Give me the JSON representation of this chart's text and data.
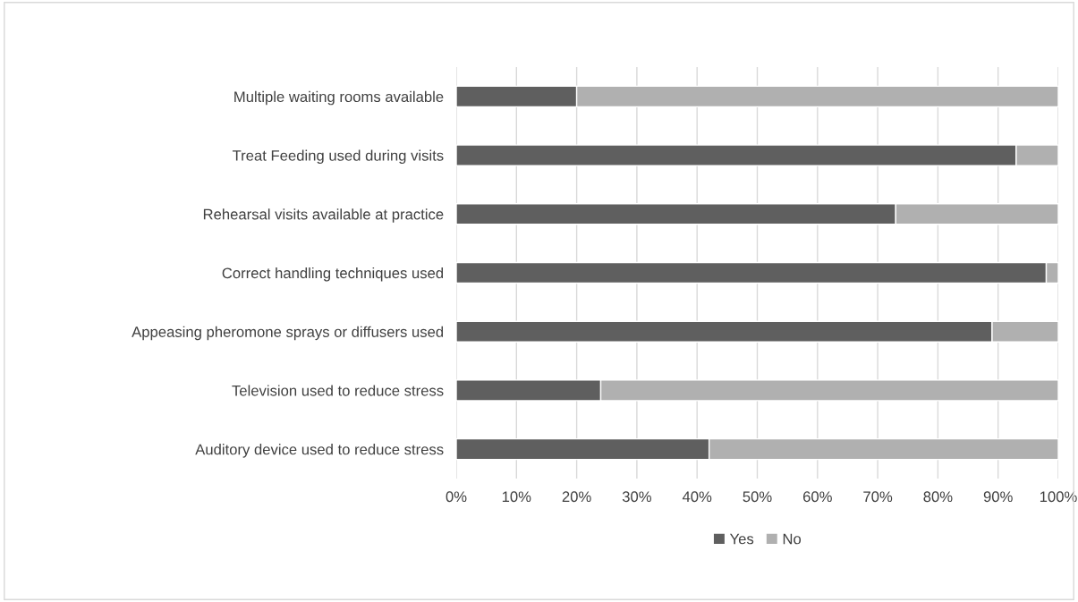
{
  "chart_data": {
    "type": "bar",
    "orientation": "horizontal",
    "stacked": true,
    "categories": [
      "Multiple waiting rooms available",
      "Treat Feeding used during visits",
      "Rehearsal visits available at practice",
      "Correct handling techniques used",
      "Appeasing pheromone sprays or diffusers used",
      "Television used to reduce stress",
      "Auditory device used to reduce stress"
    ],
    "series": [
      {
        "name": "Yes",
        "color": "#5f5f5f",
        "values": [
          20,
          93,
          73,
          98,
          89,
          24,
          42
        ]
      },
      {
        "name": "No",
        "color": "#b0b0b0",
        "values": [
          80,
          7,
          27,
          2,
          11,
          76,
          58
        ]
      }
    ],
    "xlim": [
      0,
      100
    ],
    "xticks": [
      {
        "value": 0,
        "label": "0%"
      },
      {
        "value": 10,
        "label": "10%"
      },
      {
        "value": 20,
        "label": "20%"
      },
      {
        "value": 30,
        "label": "30%"
      },
      {
        "value": 40,
        "label": "40%"
      },
      {
        "value": 50,
        "label": "50%"
      },
      {
        "value": 60,
        "label": "60%"
      },
      {
        "value": 70,
        "label": "70%"
      },
      {
        "value": 80,
        "label": "80%"
      },
      {
        "value": 90,
        "label": "90%"
      },
      {
        "value": 100,
        "label": "100%"
      }
    ],
    "grid": "x",
    "legend": "bottom"
  }
}
